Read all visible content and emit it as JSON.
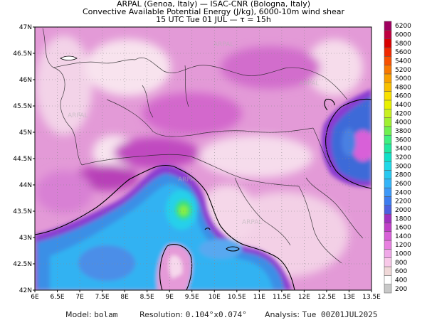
{
  "header": {
    "line1": "ARPAL (Genoa, Italy)  —  ISAC-CNR (Bologna, Italy)",
    "line2": "Convective Available Potential Energy (J/kg), 6000-10m wind shear",
    "line3": "15 UTC Tue 01 JUL  —  τ = 15h"
  },
  "map": {
    "lat_labels": [
      "47N",
      "46.5N",
      "46N",
      "45.5N",
      "45N",
      "44.5N",
      "44N",
      "43.5N",
      "43N",
      "42.5N",
      "42N"
    ],
    "lon_labels": [
      "6E",
      "6.5E",
      "7E",
      "7.5E",
      "8E",
      "8.5E",
      "9E",
      "9.5E",
      "10E",
      "10.5E",
      "11E",
      "11.5E",
      "12E",
      "12.5E",
      "13E",
      "13.5E"
    ],
    "lat_range": [
      42,
      47
    ],
    "lon_range": [
      6,
      13.5
    ],
    "watermark": "ARPAL"
  },
  "colorbar": {
    "labels": [
      "200",
      "400",
      "600",
      "800",
      "1000",
      "1200",
      "1400",
      "1600",
      "1800",
      "2000",
      "2200",
      "2400",
      "2600",
      "2800",
      "3000",
      "3200",
      "3400",
      "3600",
      "3800",
      "4000",
      "4200",
      "4400",
      "4600",
      "4800",
      "5000",
      "5200",
      "5400",
      "5600",
      "5800",
      "6000",
      "6200"
    ],
    "colors": [
      "#c8c8c8",
      "#ffffff",
      "#f0d8d8",
      "#f8c8e8",
      "#f0a8e8",
      "#e880e0",
      "#d860d8",
      "#c040c8",
      "#a030c0",
      "#4c60e0",
      "#3c7cf0",
      "#3c98f8",
      "#34b4f8",
      "#28c8f0",
      "#20d8e8",
      "#10e0c8",
      "#20e8a0",
      "#40f080",
      "#70f050",
      "#a0f030",
      "#c8f020",
      "#e8f000",
      "#f8e000",
      "#f8c000",
      "#f8a000",
      "#f87800",
      "#f85000",
      "#f02800",
      "#d80000",
      "#c00040",
      "#a00060"
    ]
  },
  "footer": {
    "model_label": "Model:",
    "model_value": "bolam",
    "resolution_label": "Resolution:",
    "resolution_value": "0.104°x0.074°",
    "analysis_label": "Analysis:",
    "analysis_value": "Tue 00Z01JUL2025"
  }
}
